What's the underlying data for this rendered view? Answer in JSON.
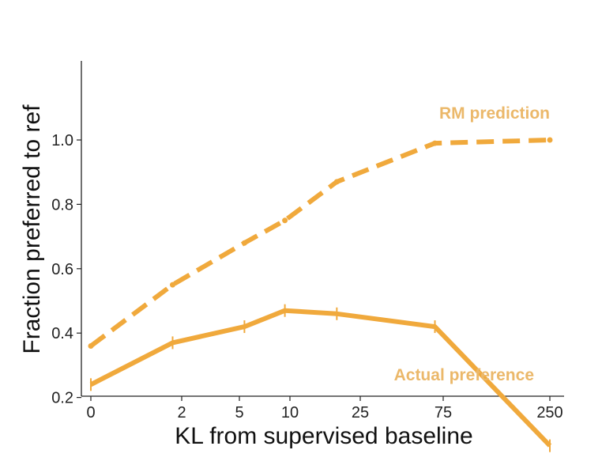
{
  "chart_data": {
    "type": "line",
    "xlabel": "KL from supervised baseline",
    "ylabel": "Fraction preferred to ref",
    "x_ticks": [
      {
        "label": "0",
        "value": 0
      },
      {
        "label": "2",
        "value": 2
      },
      {
        "label": "5",
        "value": 5
      },
      {
        "label": "10",
        "value": 10
      },
      {
        "label": "25",
        "value": 25
      },
      {
        "label": "75",
        "value": 75
      },
      {
        "label": "250",
        "value": 250
      }
    ],
    "y_ticks": [
      {
        "label": "0.2",
        "value": 0.2
      },
      {
        "label": "0.4",
        "value": 0.4
      },
      {
        "label": "0.6",
        "value": 0.6
      },
      {
        "label": "0.8",
        "value": 0.8
      },
      {
        "label": "1.0",
        "value": 1.0
      }
    ],
    "ylim": [
      0.0,
      1.05
    ],
    "series": [
      {
        "name": "RM prediction",
        "style": "dashed",
        "color": "#F0A93C",
        "points": [
          {
            "x": 0,
            "y": 0.36
          },
          {
            "x": 1.8,
            "y": 0.55
          },
          {
            "x": 5.5,
            "y": 0.68
          },
          {
            "x": 9.5,
            "y": 0.75
          },
          {
            "x": 20,
            "y": 0.87
          },
          {
            "x": 70,
            "y": 0.99
          },
          {
            "x": 250,
            "y": 1.0
          }
        ]
      },
      {
        "name": "Actual preference",
        "style": "solid",
        "color": "#F0A93C",
        "points": [
          {
            "x": 0,
            "y": 0.24
          },
          {
            "x": 1.8,
            "y": 0.37
          },
          {
            "x": 5.5,
            "y": 0.42
          },
          {
            "x": 9.5,
            "y": 0.47
          },
          {
            "x": 20,
            "y": 0.46
          },
          {
            "x": 70,
            "y": 0.42
          },
          {
            "x": 250,
            "y": 0.05
          }
        ]
      }
    ],
    "annotations": [
      {
        "text": "RM prediction",
        "series": "RM prediction"
      },
      {
        "text": "Actual preference",
        "series": "Actual preference"
      }
    ],
    "grid": false,
    "legend": "none",
    "annotation_color": "#EBB86A"
  }
}
